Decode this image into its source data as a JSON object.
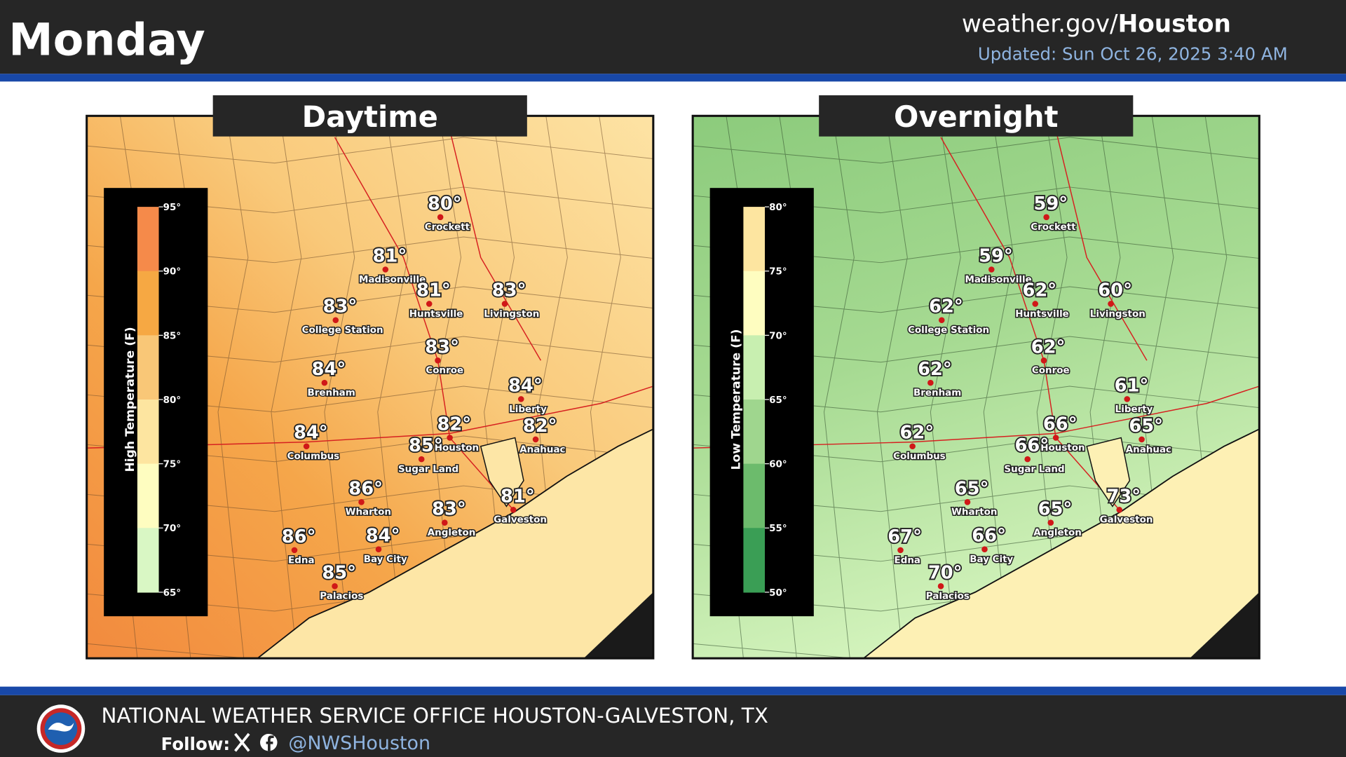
{
  "header": {
    "title": "Monday",
    "site_prefix": "weather.gov/",
    "site_office": "Houston",
    "updated": "Updated: Sun Oct 26, 2025 3:40 AM"
  },
  "panels": [
    {
      "title": "Daytime",
      "legend_title": "High Temperature (F)",
      "legend_ticks": [
        "95°",
        "90°",
        "85°",
        "80°",
        "75°",
        "70°",
        "65°"
      ],
      "cities": [
        {
          "name": "Crockett",
          "temp": "80°"
        },
        {
          "name": "Madisonville",
          "temp": "81°"
        },
        {
          "name": "Huntsville",
          "temp": "81°"
        },
        {
          "name": "Livingston",
          "temp": "83°"
        },
        {
          "name": "College Station",
          "temp": "83°"
        },
        {
          "name": "Conroe",
          "temp": "83°"
        },
        {
          "name": "Brenham",
          "temp": "84°"
        },
        {
          "name": "Liberty",
          "temp": "84°"
        },
        {
          "name": "Columbus",
          "temp": "84°"
        },
        {
          "name": "Houston",
          "temp": "82°"
        },
        {
          "name": "Anahuac",
          "temp": "82°"
        },
        {
          "name": "Sugar Land",
          "temp": "85°"
        },
        {
          "name": "Wharton",
          "temp": "86°"
        },
        {
          "name": "Galveston",
          "temp": "81°"
        },
        {
          "name": "Angleton",
          "temp": "83°"
        },
        {
          "name": "Edna",
          "temp": "86°"
        },
        {
          "name": "Bay City",
          "temp": "84°"
        },
        {
          "name": "Palacios",
          "temp": "85°"
        }
      ]
    },
    {
      "title": "Overnight",
      "legend_title": "Low Temperature (F)",
      "legend_ticks": [
        "80°",
        "75°",
        "70°",
        "65°",
        "60°",
        "55°",
        "50°"
      ],
      "cities": [
        {
          "name": "Crockett",
          "temp": "59°"
        },
        {
          "name": "Madisonville",
          "temp": "59°"
        },
        {
          "name": "Huntsville",
          "temp": "62°"
        },
        {
          "name": "Livingston",
          "temp": "60°"
        },
        {
          "name": "College Station",
          "temp": "62°"
        },
        {
          "name": "Conroe",
          "temp": "62°"
        },
        {
          "name": "Brenham",
          "temp": "62°"
        },
        {
          "name": "Liberty",
          "temp": "61°"
        },
        {
          "name": "Columbus",
          "temp": "62°"
        },
        {
          "name": "Houston",
          "temp": "66°"
        },
        {
          "name": "Anahuac",
          "temp": "65°"
        },
        {
          "name": "Sugar Land",
          "temp": "66°"
        },
        {
          "name": "Wharton",
          "temp": "65°"
        },
        {
          "name": "Galveston",
          "temp": "73°"
        },
        {
          "name": "Angleton",
          "temp": "65°"
        },
        {
          "name": "Edna",
          "temp": "67°"
        },
        {
          "name": "Bay City",
          "temp": "66°"
        },
        {
          "name": "Palacios",
          "temp": "70°"
        }
      ]
    }
  ],
  "footer": {
    "office": "NATIONAL WEATHER SERVICE OFFICE HOUSTON-GALVESTON, TX",
    "follow": "Follow:",
    "handle": "@NWSHouston"
  }
}
